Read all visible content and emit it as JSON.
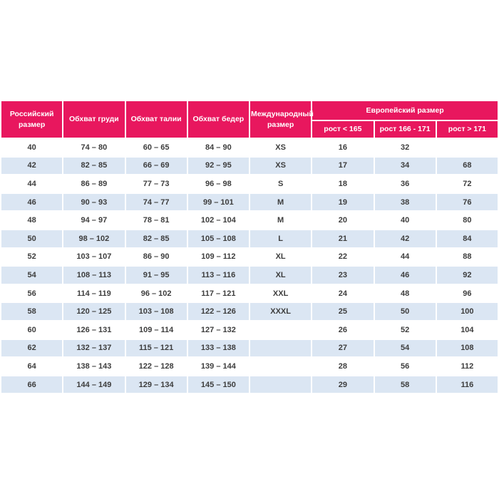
{
  "table": {
    "colors": {
      "header_bg": "#e8175e",
      "header_text": "#ffffff",
      "row_bg": "#ffffff",
      "row_alt_bg": "#dbe6f3",
      "cell_text": "#3d3d3d"
    },
    "headers": {
      "russian_size": "Российский размер",
      "chest": "Обхват груди",
      "waist": "Обхват талии",
      "hips": "Обхват бедер",
      "international_size": "Международный размер",
      "european_size": "Европейский размер",
      "height_lt_165": "рост < 165",
      "height_166_171": "рост 166 - 171",
      "height_gt_171": "рост > 171"
    },
    "rows": [
      [
        "40",
        "74 – 80",
        "60 – 65",
        "84 – 90",
        "XS",
        "16",
        "32",
        ""
      ],
      [
        "42",
        "82 – 85",
        "66 – 69",
        "92 – 95",
        "XS",
        "17",
        "34",
        "68"
      ],
      [
        "44",
        "86 – 89",
        "77 – 73",
        "96 – 98",
        "S",
        "18",
        "36",
        "72"
      ],
      [
        "46",
        "90 – 93",
        "74 – 77",
        "99 – 101",
        "M",
        "19",
        "38",
        "76"
      ],
      [
        "48",
        "94 – 97",
        "78 – 81",
        "102 – 104",
        "M",
        "20",
        "40",
        "80"
      ],
      [
        "50",
        "98 – 102",
        "82 – 85",
        "105 – 108",
        "L",
        "21",
        "42",
        "84"
      ],
      [
        "52",
        "103 – 107",
        "86 – 90",
        "109 – 112",
        "XL",
        "22",
        "44",
        "88"
      ],
      [
        "54",
        "108 – 113",
        "91 – 95",
        "113 – 116",
        "XL",
        "23",
        "46",
        "92"
      ],
      [
        "56",
        "114 – 119",
        "96 – 102",
        "117 – 121",
        "XXL",
        "24",
        "48",
        "96"
      ],
      [
        "58",
        "120 – 125",
        "103 – 108",
        "122 – 126",
        "XXXL",
        "25",
        "50",
        "100"
      ],
      [
        "60",
        "126 – 131",
        "109 – 114",
        "127 – 132",
        "",
        "26",
        "52",
        "104"
      ],
      [
        "62",
        "132 – 137",
        "115 – 121",
        "133 – 138",
        "",
        "27",
        "54",
        "108"
      ],
      [
        "64",
        "138 – 143",
        "122 – 128",
        "139 – 144",
        "",
        "28",
        "56",
        "112"
      ],
      [
        "66",
        "144 – 149",
        "129 – 134",
        "145 – 150",
        "",
        "29",
        "58",
        "116"
      ]
    ]
  }
}
